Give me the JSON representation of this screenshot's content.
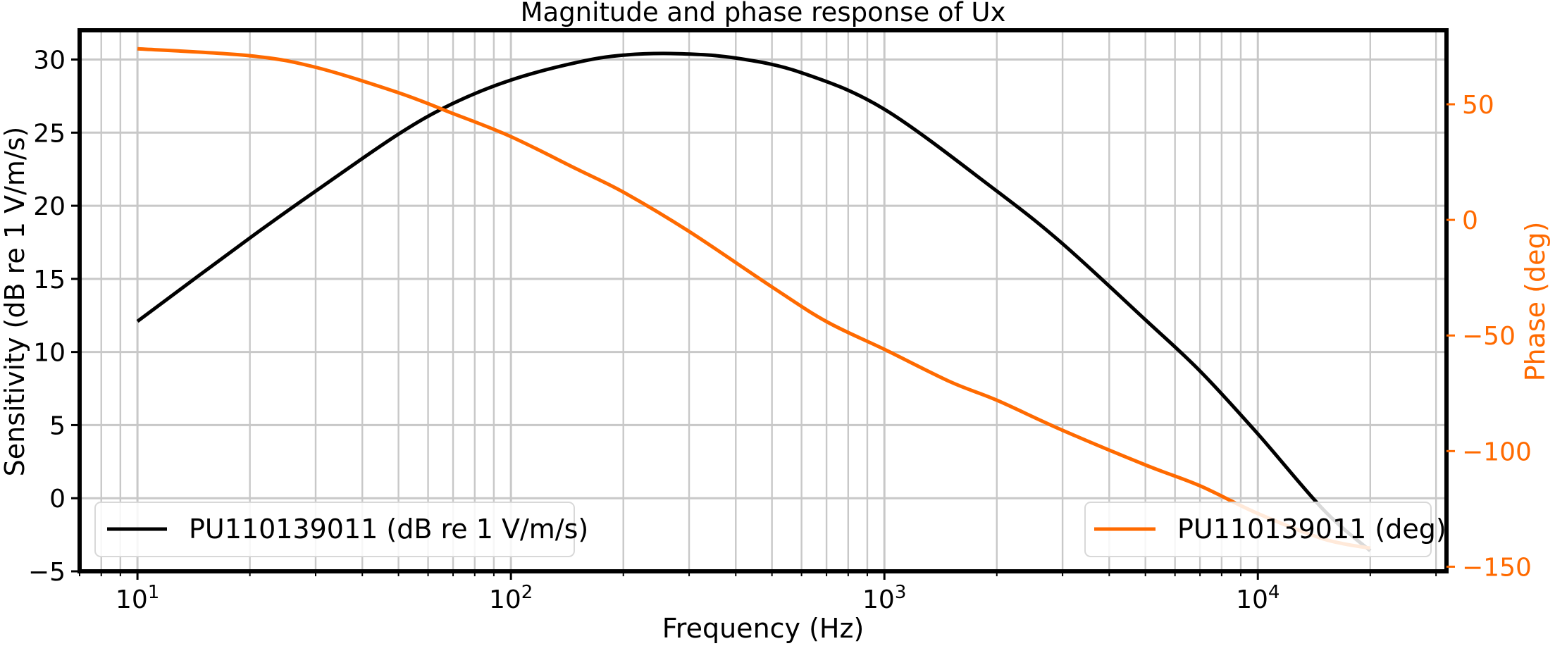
{
  "chart_data": {
    "type": "line",
    "title": "Magnitude and phase response of Ux",
    "xlabel": "Frequency (Hz)",
    "ylabel": "Sensitivity  (dB re 1 V/m/s)",
    "ylabel_right": "Phase  (deg)",
    "xscale": "log",
    "xlim": [
      7.0,
      32000
    ],
    "ylim": [
      -5,
      32
    ],
    "ylim_right": [
      -152,
      82
    ],
    "x_ticks": [
      {
        "value": 10,
        "base": "10",
        "exp": "1"
      },
      {
        "value": 100,
        "base": "10",
        "exp": "2"
      },
      {
        "value": 1000,
        "base": "10",
        "exp": "3"
      },
      {
        "value": 10000,
        "base": "10",
        "exp": "4"
      }
    ],
    "y_ticks": [
      {
        "value": 30,
        "label": "30"
      },
      {
        "value": 25,
        "label": "25"
      },
      {
        "value": 20,
        "label": "20"
      },
      {
        "value": 15,
        "label": "15"
      },
      {
        "value": 10,
        "label": "10"
      },
      {
        "value": 5,
        "label": "5"
      },
      {
        "value": 0,
        "label": "0"
      },
      {
        "value": -5,
        "label": "−5"
      }
    ],
    "y_ticks_right": [
      {
        "value": 50,
        "label": "50"
      },
      {
        "value": 0,
        "label": "0"
      },
      {
        "value": -50,
        "label": "−50"
      },
      {
        "value": -100,
        "label": "−100"
      },
      {
        "value": -150,
        "label": "−150"
      }
    ],
    "grid": true,
    "series": [
      {
        "name": "PU110139011 (dB re 1 V/m/s)",
        "axis": "left",
        "color": "#000000",
        "legend_position": "lower-left",
        "x": [
          10,
          20,
          30,
          50,
          70,
          100,
          150,
          200,
          280,
          400,
          600,
          1000,
          2000,
          3000,
          5000,
          7000,
          10000,
          15000,
          20000
        ],
        "y": [
          12.1,
          17.8,
          21.0,
          24.9,
          27.0,
          28.6,
          29.8,
          30.3,
          30.4,
          30.1,
          29.1,
          26.6,
          21.0,
          17.4,
          12.2,
          8.7,
          4.4,
          -0.8,
          -3.6
        ]
      },
      {
        "name": "PU110139011 (deg)",
        "axis": "right",
        "color": "#ff6a00",
        "legend_position": "lower-right",
        "x": [
          10,
          20,
          30,
          50,
          70,
          100,
          150,
          200,
          300,
          500,
          700,
          1000,
          1500,
          2000,
          3000,
          5000,
          7000,
          10000,
          15000,
          20000
        ],
        "y": [
          74,
          71,
          66,
          55,
          46,
          36,
          22,
          12,
          -5,
          -29,
          -44,
          -56,
          -70,
          -78,
          -91,
          -106,
          -115,
          -127,
          -138,
          -142
        ]
      }
    ]
  }
}
